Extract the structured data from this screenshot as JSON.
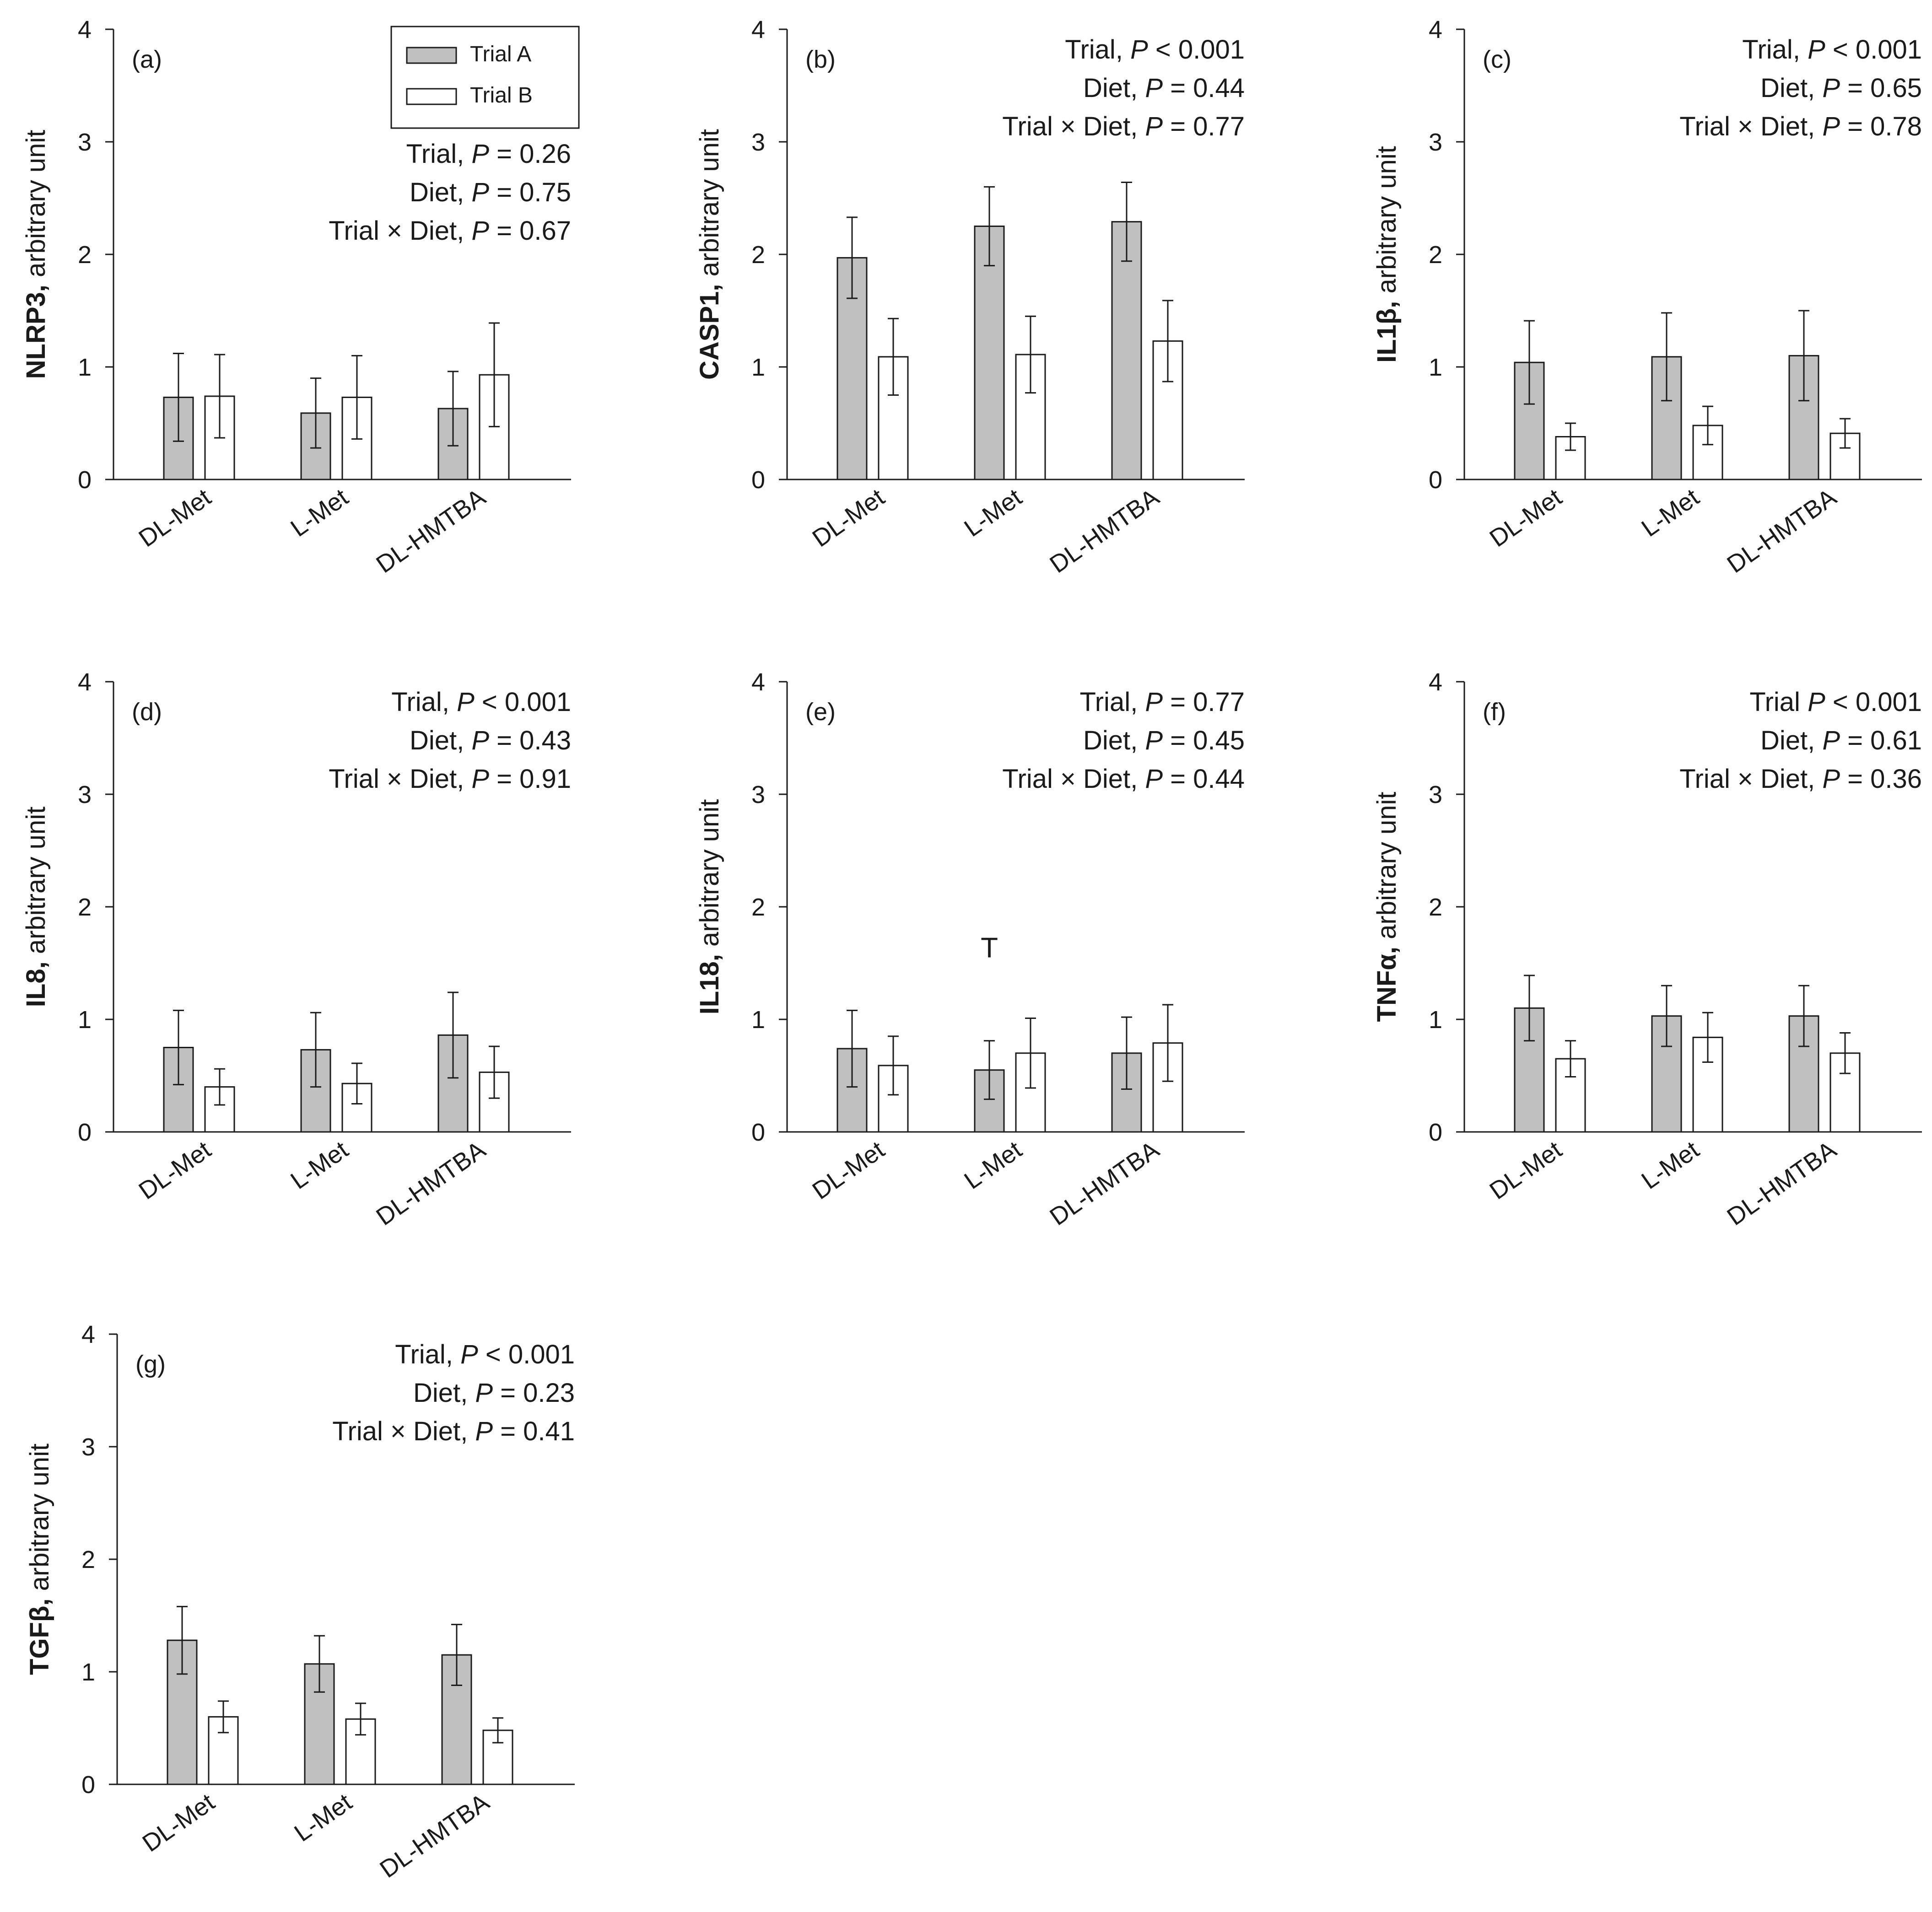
{
  "colors": {
    "trial_a_fill": "#c0c0c0",
    "trial_b_fill": "#ffffff",
    "axis": "#1a1a1a"
  },
  "legend": {
    "items": [
      {
        "name": "Trial A",
        "fill": "#c0c0c0"
      },
      {
        "name": "Trial B",
        "fill": "#ffffff"
      }
    ]
  },
  "chart_data": [
    {
      "type": "bar",
      "panel": "(a)",
      "ylabel_gene": "NLRP3,",
      "ylabel_rest": " arbitrary unit",
      "ylim": [
        0,
        4
      ],
      "yticks": [
        "0",
        "1",
        "2",
        "3",
        "4"
      ],
      "categories": [
        "DL-Met",
        "L-Met",
        "DL-HMTBA"
      ],
      "series": [
        {
          "name": "Trial A",
          "values": [
            0.73,
            0.59,
            0.63
          ],
          "errors": [
            0.39,
            0.31,
            0.33
          ]
        },
        {
          "name": "Trial B",
          "values": [
            0.74,
            0.73,
            0.93
          ],
          "errors": [
            0.37,
            0.37,
            0.46
          ]
        }
      ],
      "stats": [
        {
          "pre": "Trial, ",
          "p": "P",
          "post": " = 0.26"
        },
        {
          "pre": "Diet, ",
          "p": "P",
          "post": " = 0.75"
        },
        {
          "pre": "Trial × Diet, ",
          "p": "P",
          "post": " = 0.67"
        }
      ],
      "annotation": ""
    },
    {
      "type": "bar",
      "panel": "(b)",
      "ylabel_gene": "CASP1,",
      "ylabel_rest": " arbitrary unit",
      "ylim": [
        0,
        4
      ],
      "yticks": [
        "0",
        "1",
        "2",
        "3",
        "4"
      ],
      "categories": [
        "DL-Met",
        "L-Met",
        "DL-HMTBA"
      ],
      "series": [
        {
          "name": "Trial A",
          "values": [
            1.97,
            2.25,
            2.29
          ],
          "errors": [
            0.36,
            0.35,
            0.35
          ]
        },
        {
          "name": "Trial B",
          "values": [
            1.09,
            1.11,
            1.23
          ],
          "errors": [
            0.34,
            0.34,
            0.36
          ]
        }
      ],
      "stats": [
        {
          "pre": "Trial, ",
          "p": "P",
          "post": " < 0.001"
        },
        {
          "pre": "Diet, ",
          "p": "P",
          "post": " = 0.44"
        },
        {
          "pre": "Trial × Diet, ",
          "p": "P",
          "post": " = 0.77"
        }
      ],
      "annotation": ""
    },
    {
      "type": "bar",
      "panel": "(c)",
      "ylabel_gene": "IL1β,",
      "ylabel_rest": " arbitrary unit",
      "ylim": [
        0,
        4
      ],
      "yticks": [
        "0",
        "1",
        "2",
        "3",
        "4"
      ],
      "categories": [
        "DL-Met",
        "L-Met",
        "DL-HMTBA"
      ],
      "series": [
        {
          "name": "Trial A",
          "values": [
            1.04,
            1.09,
            1.1
          ],
          "errors": [
            0.37,
            0.39,
            0.4
          ]
        },
        {
          "name": "Trial B",
          "values": [
            0.38,
            0.48,
            0.41
          ],
          "errors": [
            0.12,
            0.17,
            0.13
          ]
        }
      ],
      "stats": [
        {
          "pre": "Trial, ",
          "p": "P",
          "post": " < 0.001"
        },
        {
          "pre": "Diet, ",
          "p": "P",
          "post": " = 0.65"
        },
        {
          "pre": "Trial × Diet, ",
          "p": "P",
          "post": " = 0.78"
        }
      ],
      "annotation": ""
    },
    {
      "type": "bar",
      "panel": "(d)",
      "ylabel_gene": "IL8,",
      "ylabel_rest": " arbitrary unit",
      "ylim": [
        0,
        4
      ],
      "yticks": [
        "0",
        "1",
        "2",
        "3",
        "4"
      ],
      "categories": [
        "DL-Met",
        "L-Met",
        "DL-HMTBA"
      ],
      "series": [
        {
          "name": "Trial A",
          "values": [
            0.75,
            0.73,
            0.86
          ],
          "errors": [
            0.33,
            0.33,
            0.38
          ]
        },
        {
          "name": "Trial B",
          "values": [
            0.4,
            0.43,
            0.53
          ],
          "errors": [
            0.16,
            0.18,
            0.23
          ]
        }
      ],
      "stats": [
        {
          "pre": "Trial, ",
          "p": "P",
          "post": " < 0.001"
        },
        {
          "pre": "Diet, ",
          "p": "P",
          "post": " = 0.43"
        },
        {
          "pre": "Trial × Diet, ",
          "p": "P",
          "post": " = 0.91"
        }
      ],
      "annotation": ""
    },
    {
      "type": "bar",
      "panel": "(e)",
      "ylabel_gene": "IL18,",
      "ylabel_rest": " arbitrary unit",
      "ylim": [
        0,
        4
      ],
      "yticks": [
        "0",
        "1",
        "2",
        "3",
        "4"
      ],
      "categories": [
        "DL-Met",
        "L-Met",
        "DL-HMTBA"
      ],
      "series": [
        {
          "name": "Trial A",
          "values": [
            0.74,
            0.55,
            0.7
          ],
          "errors": [
            0.34,
            0.26,
            0.32
          ]
        },
        {
          "name": "Trial B",
          "values": [
            0.59,
            0.7,
            0.79
          ],
          "errors": [
            0.26,
            0.31,
            0.34
          ]
        }
      ],
      "stats": [
        {
          "pre": "Trial, ",
          "p": "P",
          "post": " = 0.77"
        },
        {
          "pre": "Diet, ",
          "p": "P",
          "post": " = 0.45"
        },
        {
          "pre": "Trial × Diet, ",
          "p": "P",
          "post": " = 0.44"
        }
      ],
      "annotation": "T"
    },
    {
      "type": "bar",
      "panel": "(f)",
      "ylabel_gene": "TNFα,",
      "ylabel_rest": " arbitrary unit",
      "ylim": [
        0,
        4
      ],
      "yticks": [
        "0",
        "1",
        "2",
        "3",
        "4"
      ],
      "categories": [
        "DL-Met",
        "L-Met",
        "DL-HMTBA"
      ],
      "series": [
        {
          "name": "Trial A",
          "values": [
            1.1,
            1.03,
            1.03
          ],
          "errors": [
            0.29,
            0.27,
            0.27
          ]
        },
        {
          "name": "Trial B",
          "values": [
            0.65,
            0.84,
            0.7
          ],
          "errors": [
            0.16,
            0.22,
            0.18
          ]
        }
      ],
      "stats": [
        {
          "pre": "Trial ",
          "p": "P",
          "post": " < 0.001"
        },
        {
          "pre": "Diet, ",
          "p": "P",
          "post": " = 0.61"
        },
        {
          "pre": "Trial × Diet, ",
          "p": "P",
          "post": " = 0.36"
        }
      ],
      "annotation": ""
    },
    {
      "type": "bar",
      "panel": "(g)",
      "ylabel_gene": "TGFβ,",
      "ylabel_rest": " arbitrary unit",
      "ylim": [
        0,
        4
      ],
      "yticks": [
        "0",
        "1",
        "2",
        "3",
        "4"
      ],
      "categories": [
        "DL-Met",
        "L-Met",
        "DL-HMTBA"
      ],
      "series": [
        {
          "name": "Trial A",
          "values": [
            1.28,
            1.07,
            1.15
          ],
          "errors": [
            0.3,
            0.25,
            0.27
          ]
        },
        {
          "name": "Trial B",
          "values": [
            0.6,
            0.58,
            0.48
          ],
          "errors": [
            0.14,
            0.14,
            0.11
          ]
        }
      ],
      "stats": [
        {
          "pre": "Trial, ",
          "p": "P",
          "post": " < 0.001"
        },
        {
          "pre": "Diet, ",
          "p": "P",
          "post": " = 0.23"
        },
        {
          "pre": "Trial × Diet, ",
          "p": "P",
          "post": " = 0.41"
        }
      ],
      "annotation": ""
    }
  ]
}
